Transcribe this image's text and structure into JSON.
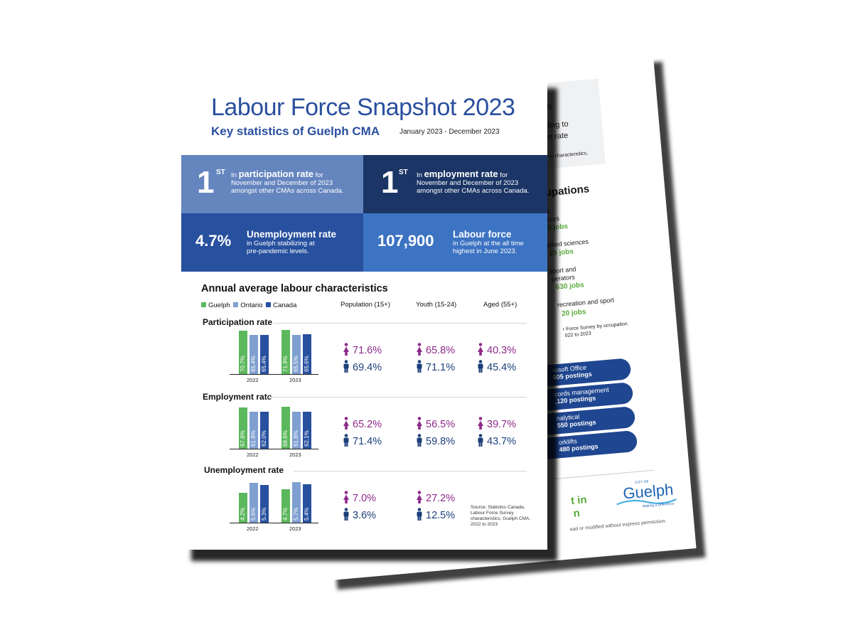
{
  "colors": {
    "guelph": "#5cb85c",
    "ontario": "#7f9fd0",
    "canada": "#27509e",
    "female": "#8e2a8a",
    "male": "#1c3f7a",
    "tile_light": "#6585bf",
    "tile_dark": "#1b3566",
    "tile_mid": "#27509e",
    "tile_bright": "#3d73c3"
  },
  "back_page": {
    "fragments": [
      "growth",
      "leading to",
      "ation rate",
      "Force characteristics,",
      "ccupations",
      "and",
      "ervices",
      "50 jobs",
      "pplied sciences",
      "20 jobs",
      "sport and",
      "perators",
      "630 jobs",
      "recreation and sport",
      "20 jobs",
      "r Force Survey by occupation",
      "022 to 2023",
      "ead or modified without express permission."
    ],
    "pills": [
      {
        "label": "rosoft Office",
        "value": "605 postings"
      },
      {
        "label": "cords management",
        "value": ",120 postings"
      },
      {
        "label": "nalytical",
        "value": "550 postings"
      },
      {
        "label": "orklifts",
        "value": "480 postings"
      }
    ],
    "logo_text": "Guelph",
    "logo_small": "CITY OF",
    "logo_tag": "Making a Difference",
    "green_tail": [
      "t in",
      "n"
    ]
  },
  "header": {
    "title": "Labour Force Snapshot 2023",
    "subtitle": "Key statistics of Guelph CMA",
    "date_range": "January 2023 - December 2023"
  },
  "tiles": {
    "participation_rank": {
      "num": "1",
      "suffix": "ST",
      "pre": "In ",
      "bold": "participation rate",
      "post": " for",
      "line2": "November and December of 2023",
      "line3": "amongst other CMAs across Canada."
    },
    "employment_rank": {
      "num": "1",
      "suffix": "ST",
      "pre": "In ",
      "bold": "employment rate",
      "post": " for",
      "line2": "November and December of 2023",
      "line3": "amongst other CMAs across Canada."
    },
    "unemployment": {
      "value": "4.7%",
      "heading": "Unemployment rate",
      "line1": "in Guelph stabilizing at",
      "line2": "pre-pandemic levels."
    },
    "labour_force": {
      "value": "107,900",
      "heading": "Labour force",
      "line1": "in Guelph at the all time",
      "line2": "highest in June 2023."
    }
  },
  "section": {
    "title": "Annual average labour characteristics",
    "legend": [
      "Guelph",
      "Ontario",
      "Canada"
    ],
    "columns": [
      "Population (15+)",
      "Youth (15-24)",
      "Aged (55+)"
    ]
  },
  "chart_data": [
    {
      "type": "bar",
      "title": "Participation rate",
      "categories": [
        "2022",
        "2023"
      ],
      "series": [
        {
          "name": "Guelph",
          "values": [
            70.7,
            71.9
          ]
        },
        {
          "name": "Ontario",
          "values": [
            65.4,
            65.5
          ]
        },
        {
          "name": "Canada",
          "values": [
            65.4,
            65.6
          ]
        }
      ],
      "labels": [
        [
          "70.7%",
          "65.4%",
          "65.4%"
        ],
        [
          "71.9%",
          "65.5%",
          "65.6%"
        ]
      ]
    },
    {
      "type": "bar",
      "title": "Employment rate",
      "categories": [
        "2022",
        "2023"
      ],
      "series": [
        {
          "name": "Guelph",
          "values": [
            67.6,
            68.6
          ]
        },
        {
          "name": "Ontario",
          "values": [
            61.8,
            61.8
          ]
        },
        {
          "name": "Canada",
          "values": [
            62.0,
            62.1
          ]
        }
      ],
      "labels": [
        [
          "67.6%",
          "61.8%",
          "62.0%"
        ],
        [
          "68.6%",
          "61.8%",
          "62.1%"
        ]
      ]
    },
    {
      "type": "bar",
      "title": "Unemployment rate",
      "categories": [
        "2022",
        "2023"
      ],
      "series": [
        {
          "name": "Guelph",
          "values": [
            4.2,
            4.7
          ]
        },
        {
          "name": "Ontario",
          "values": [
            5.6,
            5.7
          ]
        },
        {
          "name": "Canada",
          "values": [
            5.3,
            5.4
          ]
        }
      ],
      "labels": [
        [
          "4.2%",
          "5.6%",
          "5.3%"
        ],
        [
          "4.7%",
          "5.7%",
          "5.4%"
        ]
      ]
    }
  ],
  "stats": [
    {
      "female": [
        "71.6%",
        "65.8%",
        "40.3%"
      ],
      "male": [
        "69.4%",
        "71.1%",
        "45.4%"
      ]
    },
    {
      "female": [
        "65.2%",
        "56.5%",
        "39.7%"
      ],
      "male": [
        "71.4%",
        "59.8%",
        "43.7%"
      ]
    },
    {
      "female": [
        "7.0%",
        "27.2%"
      ],
      "male": [
        "3.6%",
        "12.5%"
      ]
    }
  ],
  "source": "Source: Statistics Canada, Labour Force Survey characteristics, Guelph CMA, 2022 to 2023"
}
